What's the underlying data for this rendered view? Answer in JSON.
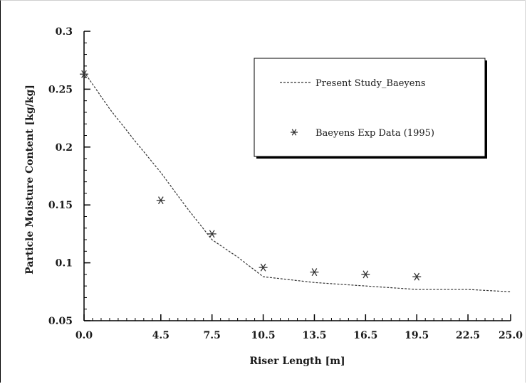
{
  "chart_data": {
    "type": "line",
    "title": "",
    "xlabel": "Riser Length [m]",
    "ylabel": "Particle Moisture Content [kg/kg]",
    "xlim": [
      0,
      25
    ],
    "ylim": [
      0.05,
      0.3
    ],
    "x_ticks": [
      0,
      4.5,
      7.5,
      10.5,
      13.5,
      16.5,
      19.5,
      22.5,
      25
    ],
    "x_tick_labels": [
      "0.0",
      "4.5",
      "7.5",
      "10.5",
      "13.5",
      "16.5",
      "19.5",
      "22.5",
      "25.0"
    ],
    "y_ticks": [
      0.05,
      0.1,
      0.15,
      0.2,
      0.25,
      0.3
    ],
    "y_tick_labels": [
      "0.05",
      "0.1",
      "0.15",
      "0.2",
      "0.25",
      "0.3"
    ],
    "grid": false,
    "legend_position": "top-right",
    "series": [
      {
        "name": "Present Study_Baeyens",
        "style": "dashed-line",
        "color": "#333333",
        "x": [
          0,
          1.5,
          3,
          4.5,
          6,
          7.5,
          9,
          10.5,
          13.5,
          16.5,
          19.5,
          22.5,
          25
        ],
        "y": [
          0.265,
          0.233,
          0.205,
          0.178,
          0.148,
          0.12,
          0.105,
          0.088,
          0.083,
          0.08,
          0.077,
          0.077,
          0.075
        ]
      },
      {
        "name": "Baeyens Exp Data (1995)",
        "style": "asterisk-markers",
        "color": "#333333",
        "x": [
          0,
          4.5,
          7.5,
          10.5,
          13.5,
          16.5,
          19.5
        ],
        "y": [
          0.263,
          0.154,
          0.125,
          0.096,
          0.092,
          0.09,
          0.088
        ]
      }
    ]
  }
}
